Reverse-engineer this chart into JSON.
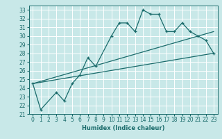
{
  "title": "",
  "xlabel": "Humidex (Indice chaleur)",
  "bg_color": "#c8e8e8",
  "grid_color": "#ffffff",
  "line_color": "#1a6b6b",
  "xlim": [
    -0.5,
    23.5
  ],
  "ylim": [
    21,
    33.5
  ],
  "xticks": [
    0,
    1,
    2,
    3,
    4,
    5,
    6,
    7,
    8,
    9,
    10,
    11,
    12,
    13,
    14,
    15,
    16,
    17,
    18,
    19,
    20,
    21,
    22,
    23
  ],
  "yticks": [
    21,
    22,
    23,
    24,
    25,
    26,
    27,
    28,
    29,
    30,
    31,
    32,
    33
  ],
  "main_x": [
    0,
    1,
    3,
    4,
    5,
    6,
    7,
    8,
    10,
    11,
    12,
    13,
    14,
    15,
    16,
    17,
    18,
    19,
    20,
    21,
    22,
    23
  ],
  "main_y": [
    24.5,
    21.5,
    23.5,
    22.5,
    24.5,
    25.5,
    27.5,
    26.5,
    30.0,
    31.5,
    31.5,
    30.5,
    33.0,
    32.5,
    32.5,
    30.5,
    30.5,
    31.5,
    30.5,
    30.0,
    29.5,
    28.0
  ],
  "trend1_x": [
    0,
    23
  ],
  "trend1_y": [
    24.5,
    28.0
  ],
  "trend2_x": [
    0,
    23
  ],
  "trend2_y": [
    24.5,
    30.5
  ],
  "line_width": 0.9,
  "marker_size": 3.5,
  "tick_fontsize": 5.5,
  "xlabel_fontsize": 6.0
}
